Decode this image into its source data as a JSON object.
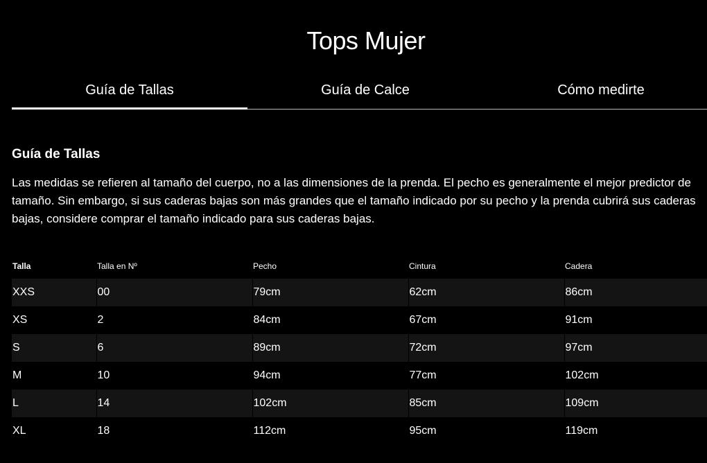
{
  "page_title": "Tops Mujer",
  "tabs": [
    {
      "label": "Guía de Tallas",
      "active": true
    },
    {
      "label": "Guía de Calce",
      "active": false
    },
    {
      "label": "Cómo medirte",
      "active": false
    }
  ],
  "section": {
    "title": "Guía de Tallas",
    "description": "Las medidas se refieren al tamaño del cuerpo, no a las dimensiones de la prenda. El pecho es generalmente el mejor predictor de tamaño. Sin embargo, si sus caderas bajas son más grandes que el tamaño indicado por su pecho y la prenda cubrirá sus caderas bajas, considere comprar el tamaño indicado para sus caderas bajas."
  },
  "table": {
    "headers": [
      "Talla",
      "Talla en Nº",
      "Pecho",
      "Cintura",
      "Cadera"
    ],
    "rows": [
      [
        "XXS",
        "00",
        "79cm",
        "62cm",
        "86cm"
      ],
      [
        "XS",
        "2",
        "84cm",
        "67cm",
        "91cm"
      ],
      [
        "S",
        "6",
        "89cm",
        "72cm",
        "97cm"
      ],
      [
        "M",
        "10",
        "94cm",
        "77cm",
        "102cm"
      ],
      [
        "L",
        "14",
        "102cm",
        "85cm",
        "109cm"
      ],
      [
        "XL",
        "18",
        "112cm",
        "95cm",
        "119cm"
      ]
    ]
  },
  "colors": {
    "background": "#000000",
    "row_alt": "#141414",
    "text": "#ffffff"
  }
}
